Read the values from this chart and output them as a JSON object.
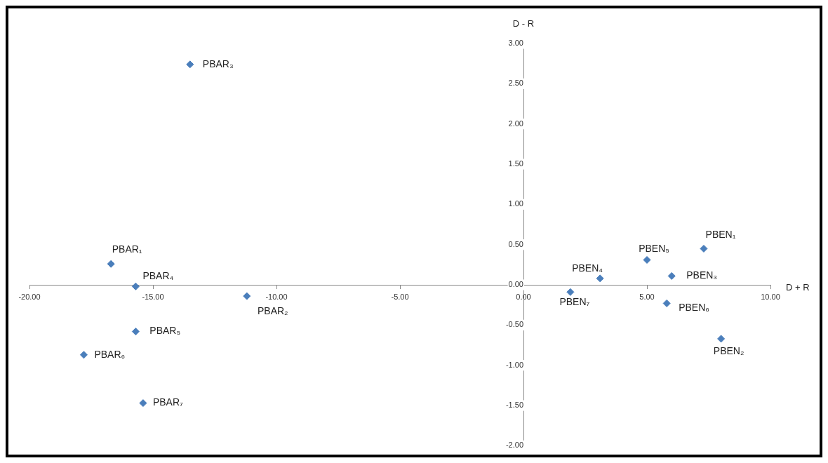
{
  "chart_data": {
    "type": "scatter",
    "xlabel": "D + R",
    "ylabel": "D - R",
    "marker": "diamond",
    "x": [
      -13.5,
      -16.7,
      -15.7,
      -11.2,
      -15.7,
      -17.8,
      -15.4,
      1.9,
      3.1,
      5.0,
      6.0,
      7.3,
      5.8,
      8.0
    ],
    "series": [
      {
        "color": "#4a7ebb",
        "values": [
          2.74,
          0.26,
          -0.02,
          -0.14,
          -0.58,
          -0.87,
          -1.47,
          -0.09,
          0.08,
          0.31,
          0.11,
          0.45,
          -0.23,
          -0.67
        ]
      }
    ],
    "xlim": [
      -20,
      10
    ],
    "xticks": [
      {
        "value": -20,
        "label": "-20.00"
      },
      {
        "value": -15,
        "label": "-15.00"
      },
      {
        "value": -10,
        "label": "-10.00"
      },
      {
        "value": -5,
        "label": "-5.00"
      },
      {
        "value": 0,
        "label": "0.00"
      },
      {
        "value": 5,
        "label": "5.00"
      },
      {
        "value": 10,
        "label": "10.00"
      }
    ],
    "ylim": [
      -2,
      3
    ],
    "yticks": [
      {
        "value": -2,
        "label": "-2.00"
      },
      {
        "value": -1.5,
        "label": "-1.50"
      },
      {
        "value": -1,
        "label": "-1.00"
      },
      {
        "value": -0.5,
        "label": "-0.50"
      },
      {
        "value": 0,
        "label": "0.00"
      },
      {
        "value": 0.5,
        "label": "0.50"
      },
      {
        "value": 1,
        "label": "1.00"
      },
      {
        "value": 1.5,
        "label": "1.50"
      },
      {
        "value": 2,
        "label": "2.00"
      },
      {
        "value": 2.5,
        "label": "2.50"
      },
      {
        "value": 3,
        "label": "3.00"
      }
    ],
    "annotations": [
      {
        "text": "PBAR₃",
        "x": -13.5,
        "y": 2.74
      },
      {
        "text": "PBAR₁",
        "x": -16.7,
        "y": 0.26
      },
      {
        "text": "PBAR₄",
        "x": -15.7,
        "y": -0.02
      },
      {
        "text": "PBAR₂",
        "x": -11.2,
        "y": -0.14
      },
      {
        "text": "PBAR₅",
        "x": -15.7,
        "y": -0.58
      },
      {
        "text": "PBAR₆",
        "x": -17.8,
        "y": -0.87
      },
      {
        "text": "PBAR₇",
        "x": -15.4,
        "y": -1.47
      },
      {
        "text": "PBEN₇",
        "x": 1.9,
        "y": -0.09
      },
      {
        "text": "PBEN₄",
        "x": 3.1,
        "y": 0.08
      },
      {
        "text": "PBEN₅",
        "x": 5.0,
        "y": 0.31
      },
      {
        "text": "PBEN₃",
        "x": 6.0,
        "y": 0.11
      },
      {
        "text": "PBEN₁",
        "x": 7.3,
        "y": 0.45
      },
      {
        "text": "PBEN₆",
        "x": 5.8,
        "y": -0.23
      },
      {
        "text": "PBEN₂",
        "x": 8.0,
        "y": -0.67
      }
    ]
  }
}
